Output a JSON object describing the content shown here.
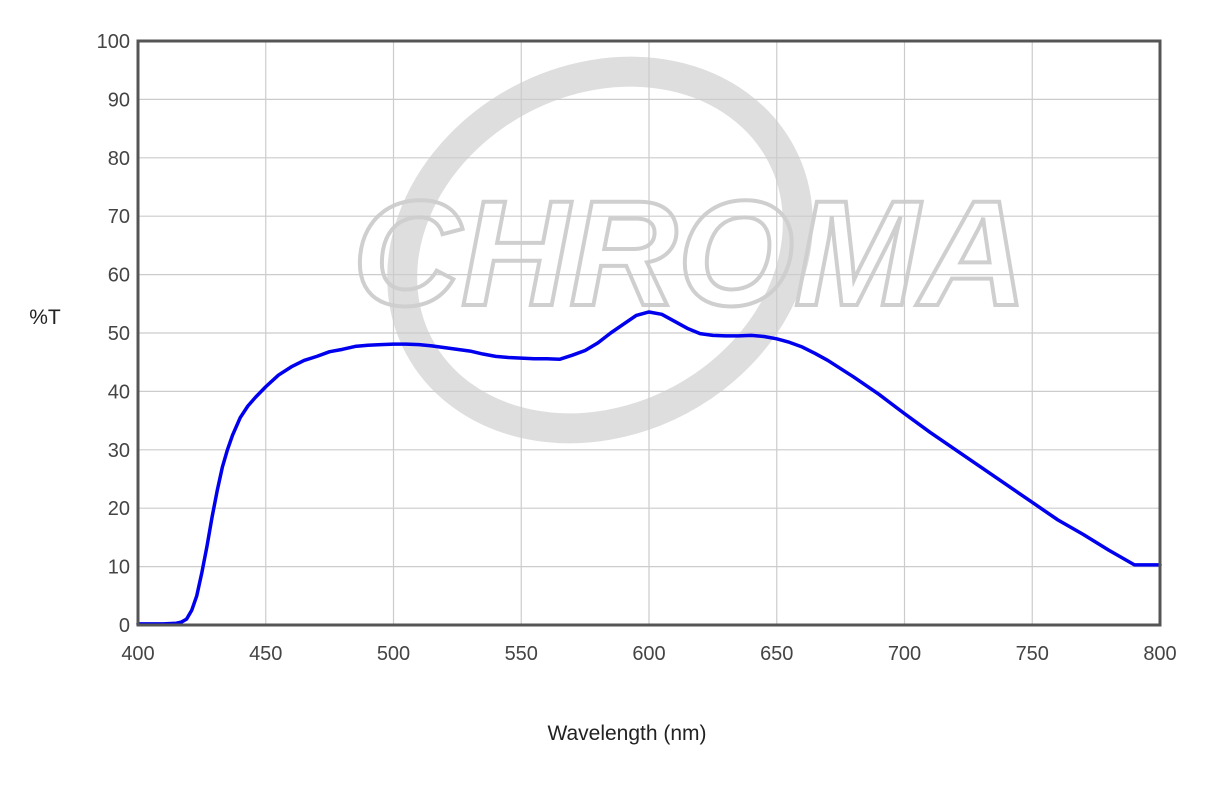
{
  "chart_data": {
    "type": "line",
    "title": "",
    "xlabel": "Wavelength (nm)",
    "ylabel": "%T",
    "xlim": [
      400,
      800
    ],
    "ylim": [
      0,
      100
    ],
    "x_ticks": [
      400,
      450,
      500,
      550,
      600,
      650,
      700,
      750,
      800
    ],
    "y_ticks": [
      0,
      10,
      20,
      30,
      40,
      50,
      60,
      70,
      80,
      90,
      100
    ],
    "grid": true,
    "legend": "none",
    "watermark": "CHROMA",
    "colors": {
      "line": "#0000ee",
      "grid": "#cccccc",
      "frame": "#555555",
      "watermark": "#cfcfcf"
    },
    "series": [
      {
        "x": [
          400,
          405,
          410,
          415,
          417,
          419,
          421,
          423,
          425,
          427,
          429,
          431,
          433,
          435,
          437,
          440,
          443,
          446,
          450,
          455,
          460,
          465,
          470,
          475,
          480,
          485,
          490,
          495,
          500,
          505,
          510,
          515,
          520,
          525,
          530,
          535,
          540,
          545,
          550,
          555,
          560,
          565,
          570,
          575,
          580,
          585,
          590,
          595,
          600,
          605,
          610,
          615,
          620,
          625,
          630,
          635,
          640,
          645,
          650,
          655,
          660,
          665,
          670,
          680,
          690,
          700,
          710,
          720,
          730,
          740,
          750,
          760,
          770,
          780,
          790,
          800
        ],
        "y": [
          0.2,
          0.2,
          0.2,
          0.3,
          0.5,
          1.0,
          2.5,
          5.0,
          9.0,
          13.5,
          18.5,
          23.0,
          27.0,
          30.0,
          32.5,
          35.5,
          37.5,
          39.0,
          40.8,
          42.8,
          44.2,
          45.3,
          46.0,
          46.8,
          47.2,
          47.7,
          47.9,
          48.0,
          48.1,
          48.1,
          48.0,
          47.8,
          47.5,
          47.2,
          46.9,
          46.4,
          46.0,
          45.8,
          45.7,
          45.6,
          45.6,
          45.5,
          46.2,
          47.0,
          48.3,
          50.0,
          51.5,
          53.0,
          53.6,
          53.2,
          52.0,
          50.8,
          49.9,
          49.6,
          49.5,
          49.5,
          49.6,
          49.4,
          49.0,
          48.4,
          47.6,
          46.5,
          45.3,
          42.5,
          39.5,
          36.2,
          33.0,
          30.0,
          27.0,
          24.0,
          21.0,
          18.0,
          15.5,
          12.8,
          10.3,
          10.3
        ]
      }
    ]
  }
}
